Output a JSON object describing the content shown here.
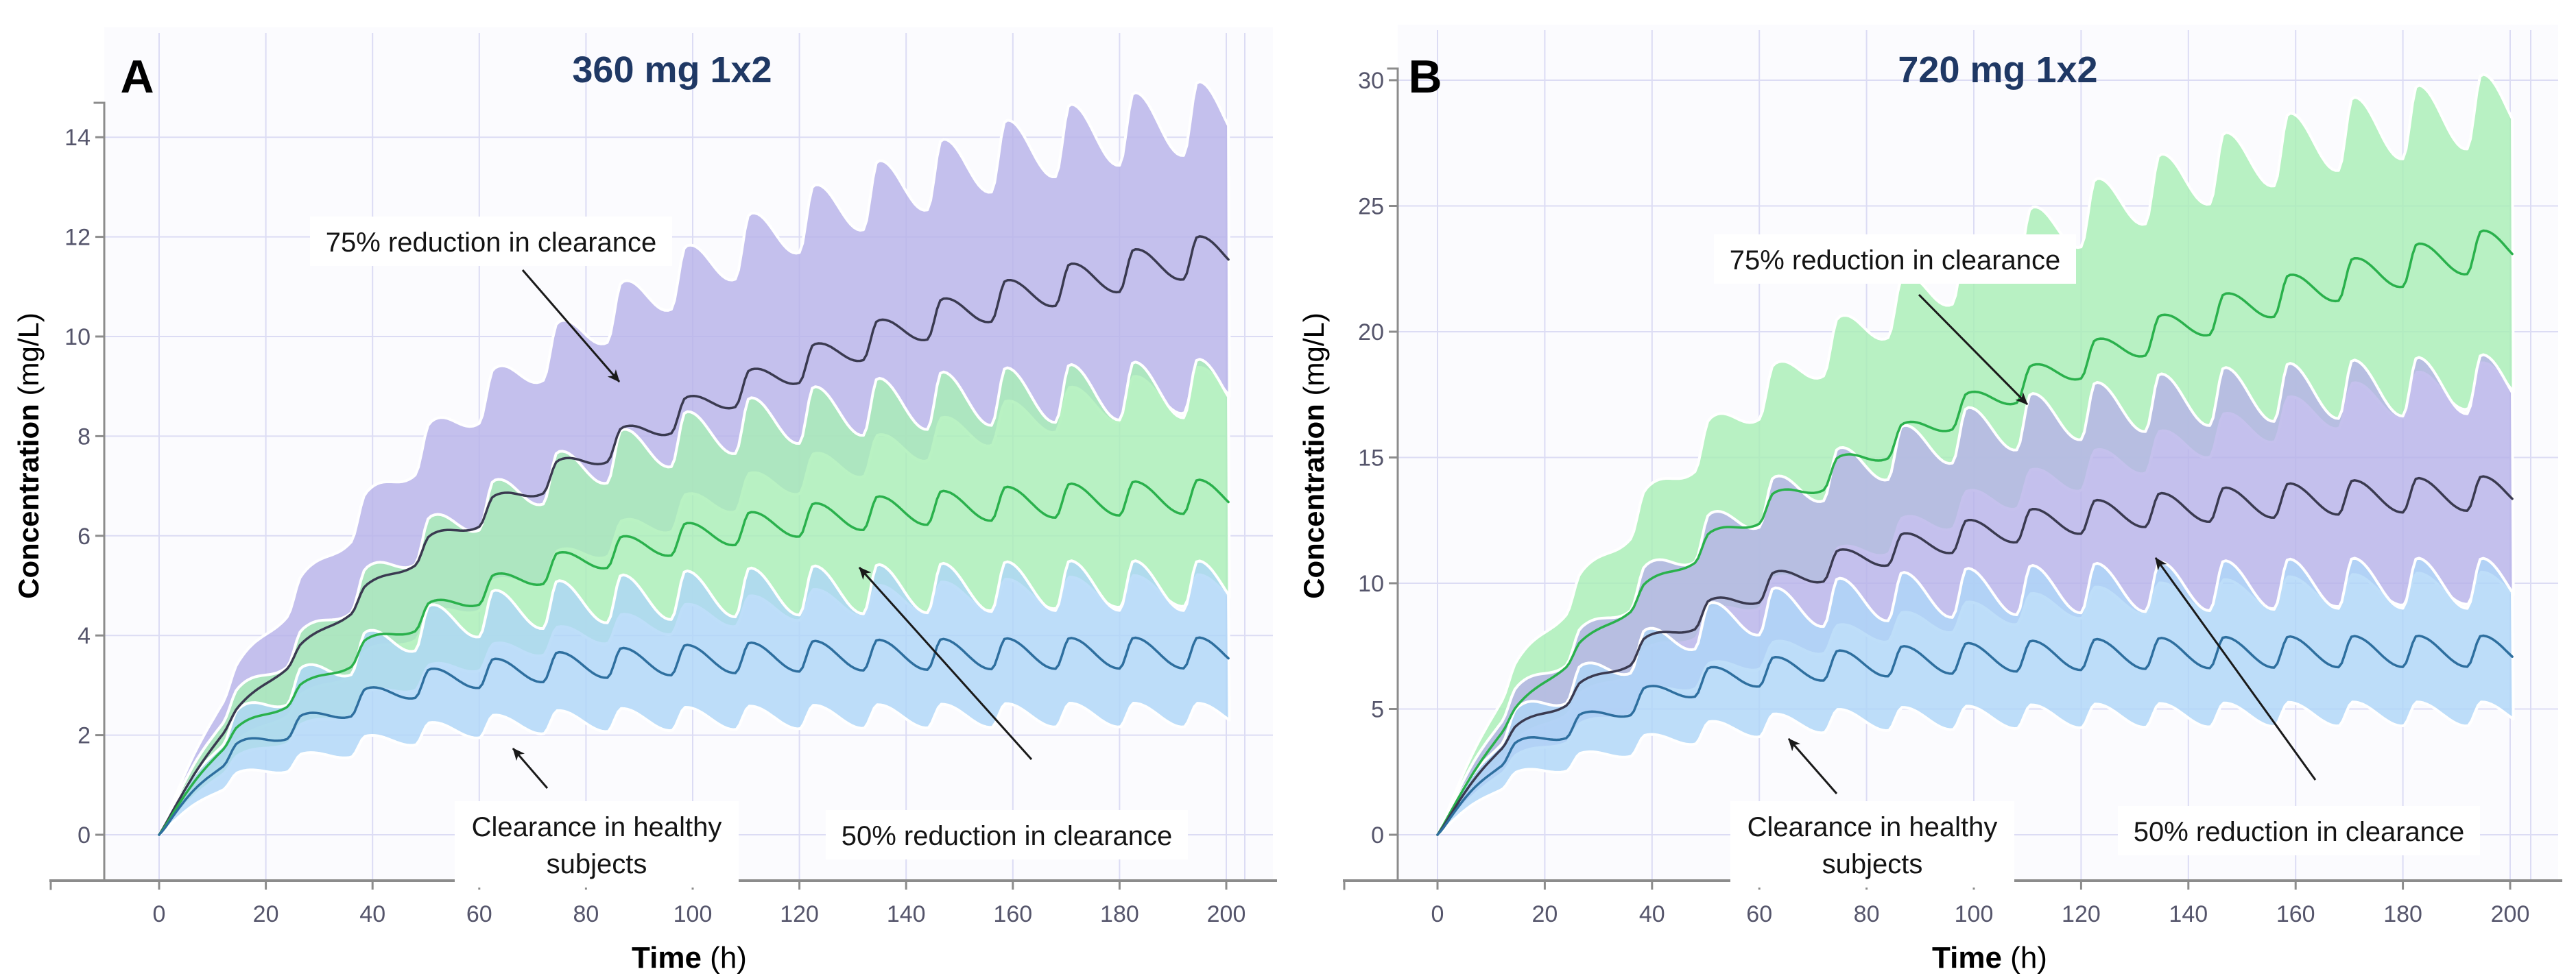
{
  "page": {
    "background": "#ffffff",
    "description": "Two-panel simulated concentration-time profiles with dosing every 12 h"
  },
  "colors": {
    "title": "#1f3864",
    "panel_label": "#000000",
    "tick_label": "#55556b",
    "axis_line": "#8c8c8c",
    "grid_line": "#dcdcf4",
    "plot_background": "#fbfbfe",
    "annotation_text": "#141414",
    "annotation_box": "#ffffff",
    "arrow": "#1a1a1a",
    "band_purple": "#b7b2e9",
    "band_green": "#a8efb4",
    "band_blue": "#aed6f8",
    "band_edge_white": "#ffffff",
    "line_dark_navy": "#3a3a50",
    "line_green": "#2ab14c",
    "line_steel_blue": "#2e6f9f"
  },
  "chart_data": [
    {
      "type": "line",
      "panel_label": "A",
      "title": "360 mg 1x2",
      "xlabel": "Time",
      "xlabel_unit": "(h)",
      "ylabel": "Concentration",
      "ylabel_unit": "(mg/L)",
      "xlim": [
        0,
        200
      ],
      "ylim": [
        0,
        15.2
      ],
      "xticks": [
        0,
        20,
        40,
        60,
        80,
        100,
        120,
        140,
        160,
        180,
        200
      ],
      "yticks": [
        0,
        2,
        4,
        6,
        8,
        10,
        12,
        14
      ],
      "grid": true,
      "dosing_interval_h": 12,
      "series": [
        {
          "name": "75% reduction in clearance",
          "band_color_key": "band_purple",
          "line_color_key": "line_dark_navy",
          "ripple_fraction": 0.035,
          "median_points": [
            [
              0,
              0
            ],
            [
              12,
              2.1
            ],
            [
              24,
              3.45
            ],
            [
              48,
              5.6
            ],
            [
              72,
              7.1
            ],
            [
              96,
              8.35
            ],
            [
              120,
              9.4
            ],
            [
              144,
              10.3
            ],
            [
              168,
              11.0
            ],
            [
              192,
              11.55
            ],
            [
              201,
              11.7
            ]
          ],
          "band_high_points": [
            [
              0,
              0
            ],
            [
              12,
              2.8
            ],
            [
              24,
              4.6
            ],
            [
              48,
              7.6
            ],
            [
              72,
              9.6
            ],
            [
              96,
              11.1
            ],
            [
              120,
              12.3
            ],
            [
              144,
              13.2
            ],
            [
              168,
              13.9
            ],
            [
              192,
              14.35
            ],
            [
              201,
              14.5
            ]
          ],
          "band_low_points": [
            [
              0,
              0
            ],
            [
              12,
              1.55
            ],
            [
              24,
              2.5
            ],
            [
              48,
              4.1
            ],
            [
              72,
              5.3
            ],
            [
              96,
              6.4
            ],
            [
              120,
              7.2
            ],
            [
              144,
              7.9
            ],
            [
              168,
              8.5
            ],
            [
              192,
              8.9
            ],
            [
              201,
              9.0
            ]
          ]
        },
        {
          "name": "50% reduction in clearance",
          "band_color_key": "band_green",
          "line_color_key": "line_green",
          "ripple_fraction": 0.05,
          "median_points": [
            [
              0,
              0
            ],
            [
              12,
              1.8
            ],
            [
              24,
              2.7
            ],
            [
              48,
              4.3
            ],
            [
              72,
              5.3
            ],
            [
              96,
              5.9
            ],
            [
              120,
              6.3
            ],
            [
              144,
              6.55
            ],
            [
              168,
              6.7
            ],
            [
              192,
              6.78
            ],
            [
              201,
              6.8
            ]
          ],
          "band_high_points": [
            [
              0,
              0
            ],
            [
              12,
              2.4
            ],
            [
              24,
              3.6
            ],
            [
              48,
              5.8
            ],
            [
              72,
              7.1
            ],
            [
              96,
              7.9
            ],
            [
              120,
              8.4
            ],
            [
              144,
              8.7
            ],
            [
              168,
              8.85
            ],
            [
              192,
              8.95
            ],
            [
              201,
              9.0
            ]
          ],
          "band_low_points": [
            [
              0,
              0
            ],
            [
              12,
              1.3
            ],
            [
              24,
              1.95
            ],
            [
              48,
              3.1
            ],
            [
              72,
              3.85
            ],
            [
              96,
              4.3
            ],
            [
              120,
              4.6
            ],
            [
              144,
              4.75
            ],
            [
              168,
              4.85
            ],
            [
              192,
              4.9
            ],
            [
              201,
              4.9
            ]
          ]
        },
        {
          "name": "Clearance in healthy subjects",
          "band_color_key": "band_blue",
          "line_color_key": "line_steel_blue",
          "ripple_fraction": 0.085,
          "median_points": [
            [
              0,
              0
            ],
            [
              12,
              1.5
            ],
            [
              24,
              2.1
            ],
            [
              48,
              3.0
            ],
            [
              72,
              3.35
            ],
            [
              96,
              3.5
            ],
            [
              120,
              3.58
            ],
            [
              144,
              3.62
            ],
            [
              168,
              3.64
            ],
            [
              192,
              3.65
            ],
            [
              201,
              3.65
            ]
          ],
          "band_high_points": [
            [
              0,
              0
            ],
            [
              12,
              2.0
            ],
            [
              24,
              2.9
            ],
            [
              48,
              4.1
            ],
            [
              72,
              4.6
            ],
            [
              96,
              4.8
            ],
            [
              120,
              4.9
            ],
            [
              144,
              4.95
            ],
            [
              168,
              5.0
            ],
            [
              192,
              5.0
            ],
            [
              201,
              5.0
            ]
          ],
          "band_low_points": [
            [
              0,
              0
            ],
            [
              12,
              1.0
            ],
            [
              24,
              1.4
            ],
            [
              48,
              2.0
            ],
            [
              72,
              2.25
            ],
            [
              96,
              2.32
            ],
            [
              120,
              2.36
            ],
            [
              144,
              2.38
            ],
            [
              168,
              2.4
            ],
            [
              192,
              2.4
            ],
            [
              201,
              2.4
            ]
          ]
        }
      ],
      "annotations": [
        {
          "id": "a-75",
          "lines": [
            "75% reduction in clearance"
          ],
          "cx": 716,
          "cy": 352,
          "arrow": [
            762,
            394,
            903,
            557
          ]
        },
        {
          "id": "a-healthy",
          "lines": [
            "Clearance in healthy",
            "subjects"
          ],
          "cx": 870,
          "cy": 1232,
          "arrow": [
            798,
            1150,
            748,
            1092
          ]
        },
        {
          "id": "a-50",
          "lines": [
            "50% reduction in clearance"
          ],
          "cx": 1468,
          "cy": 1218,
          "arrow": [
            1504,
            1108,
            1253,
            828
          ]
        }
      ]
    },
    {
      "type": "line",
      "panel_label": "B",
      "title": "720 mg 1x2",
      "xlabel": "Time",
      "xlabel_unit": "(h)",
      "ylabel": "Concentration",
      "ylabel_unit": "(mg/L)",
      "xlim": [
        0,
        200
      ],
      "ylim": [
        0,
        30.5
      ],
      "xticks": [
        0,
        20,
        40,
        60,
        80,
        100,
        120,
        140,
        160,
        180,
        200
      ],
      "yticks": [
        0,
        5,
        10,
        15,
        20,
        25,
        30
      ],
      "grid": true,
      "dosing_interval_h": 12,
      "series": [
        {
          "name": "75% reduction in clearance",
          "band_color_key": "band_green",
          "line_color_key": "line_green",
          "ripple_fraction": 0.035,
          "median_points": [
            [
              0,
              0
            ],
            [
              12,
              4.2
            ],
            [
              24,
              6.9
            ],
            [
              48,
              11.2
            ],
            [
              72,
              14.2
            ],
            [
              96,
              16.7
            ],
            [
              120,
              18.8
            ],
            [
              144,
              20.6
            ],
            [
              168,
              22.0
            ],
            [
              192,
              23.1
            ],
            [
              201,
              23.4
            ]
          ],
          "band_high_points": [
            [
              0,
              0
            ],
            [
              12,
              5.6
            ],
            [
              24,
              9.2
            ],
            [
              48,
              15.2
            ],
            [
              72,
              19.2
            ],
            [
              96,
              22.2
            ],
            [
              120,
              24.6
            ],
            [
              144,
              26.4
            ],
            [
              168,
              27.8
            ],
            [
              192,
              28.7
            ],
            [
              201,
              29.0
            ]
          ],
          "band_low_points": [
            [
              0,
              0
            ],
            [
              12,
              3.1
            ],
            [
              24,
              5.0
            ],
            [
              48,
              8.2
            ],
            [
              72,
              10.6
            ],
            [
              96,
              12.8
            ],
            [
              120,
              14.4
            ],
            [
              144,
              15.8
            ],
            [
              168,
              17.0
            ],
            [
              192,
              17.8
            ],
            [
              201,
              18.0
            ]
          ]
        },
        {
          "name": "50% reduction in clearance",
          "band_color_key": "band_purple",
          "line_color_key": "line_dark_navy",
          "ripple_fraction": 0.05,
          "median_points": [
            [
              0,
              0
            ],
            [
              12,
              3.6
            ],
            [
              24,
              5.4
            ],
            [
              48,
              8.6
            ],
            [
              72,
              10.6
            ],
            [
              96,
              11.8
            ],
            [
              120,
              12.6
            ],
            [
              144,
              13.1
            ],
            [
              168,
              13.4
            ],
            [
              192,
              13.56
            ],
            [
              201,
              13.6
            ]
          ],
          "band_high_points": [
            [
              0,
              0
            ],
            [
              12,
              4.8
            ],
            [
              24,
              7.2
            ],
            [
              48,
              11.6
            ],
            [
              72,
              14.2
            ],
            [
              96,
              15.8
            ],
            [
              120,
              16.8
            ],
            [
              144,
              17.4
            ],
            [
              168,
              17.7
            ],
            [
              192,
              17.9
            ],
            [
              201,
              18.0
            ]
          ],
          "band_low_points": [
            [
              0,
              0
            ],
            [
              12,
              2.6
            ],
            [
              24,
              3.9
            ],
            [
              48,
              6.2
            ],
            [
              72,
              7.7
            ],
            [
              96,
              8.6
            ],
            [
              120,
              9.2
            ],
            [
              144,
              9.5
            ],
            [
              168,
              9.7
            ],
            [
              192,
              9.8
            ],
            [
              201,
              9.8
            ]
          ]
        },
        {
          "name": "Clearance in healthy subjects",
          "band_color_key": "band_blue",
          "line_color_key": "line_steel_blue",
          "ripple_fraction": 0.085,
          "median_points": [
            [
              0,
              0
            ],
            [
              12,
              3.0
            ],
            [
              24,
              4.2
            ],
            [
              48,
              6.0
            ],
            [
              72,
              6.7
            ],
            [
              96,
              7.0
            ],
            [
              120,
              7.16
            ],
            [
              144,
              7.24
            ],
            [
              168,
              7.28
            ],
            [
              192,
              7.3
            ],
            [
              201,
              7.3
            ]
          ],
          "band_high_points": [
            [
              0,
              0
            ],
            [
              12,
              4.0
            ],
            [
              24,
              5.8
            ],
            [
              48,
              8.2
            ],
            [
              72,
              9.2
            ],
            [
              96,
              9.6
            ],
            [
              120,
              9.8
            ],
            [
              144,
              9.9
            ],
            [
              168,
              10.0
            ],
            [
              192,
              10.0
            ],
            [
              201,
              10.0
            ]
          ],
          "band_low_points": [
            [
              0,
              0
            ],
            [
              12,
              2.0
            ],
            [
              24,
              2.8
            ],
            [
              48,
              4.0
            ],
            [
              72,
              4.5
            ],
            [
              96,
              4.64
            ],
            [
              120,
              4.72
            ],
            [
              144,
              4.76
            ],
            [
              168,
              4.8
            ],
            [
              192,
              4.8
            ],
            [
              201,
              4.8
            ]
          ]
        }
      ],
      "annotations": [
        {
          "id": "b-75",
          "lines": [
            "75% reduction in clearance"
          ],
          "cx": 885,
          "cy": 378,
          "arrow": [
            920,
            430,
            1078,
            590
          ]
        },
        {
          "id": "b-healthy",
          "lines": [
            "Clearance in healthy",
            "subjects"
          ],
          "cx": 852,
          "cy": 1232,
          "arrow": [
            800,
            1158,
            730,
            1078
          ]
        },
        {
          "id": "b-50",
          "lines": [
            "50% reduction in clearance"
          ],
          "cx": 1474,
          "cy": 1212,
          "arrow": [
            1498,
            1138,
            1265,
            814
          ]
        }
      ]
    }
  ]
}
